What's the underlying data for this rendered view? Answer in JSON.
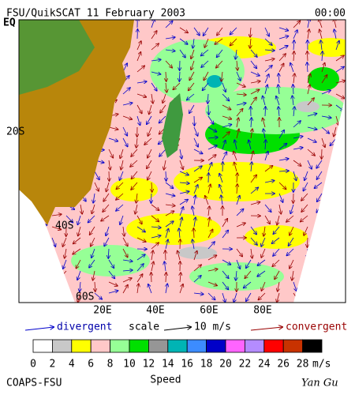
{
  "header": {
    "title": "FSU/QuikSCAT  11 February 2003",
    "time": "00:00"
  },
  "map": {
    "lat_labels": [
      "EQ",
      "20S",
      "40S",
      "60S"
    ],
    "lon_labels": [
      "20E",
      "40E",
      "60E",
      "80E"
    ]
  },
  "legend": {
    "divergent": "divergent",
    "scale": "scale",
    "scale_value": "10 m/s",
    "convergent": "convergent"
  },
  "color_scale": {
    "labels": [
      "0",
      "2",
      "4",
      "6",
      "8",
      "10",
      "12",
      "14",
      "16",
      "18",
      "20",
      "22",
      "24",
      "26",
      "28"
    ],
    "colors": [
      "#ffffff",
      "#c8c8c8",
      "#ffff00",
      "#ffc8c8",
      "#96ff96",
      "#00e000",
      "#969696",
      "#00b4b4",
      "#3c8cff",
      "#0000c8",
      "#ff64ff",
      "#b48cff",
      "#ff0000",
      "#c83200",
      "#000000"
    ],
    "unit": "m/s",
    "title": "Speed"
  },
  "footer": {
    "left": "COAPS-FSU",
    "right": "Yan Gu"
  }
}
